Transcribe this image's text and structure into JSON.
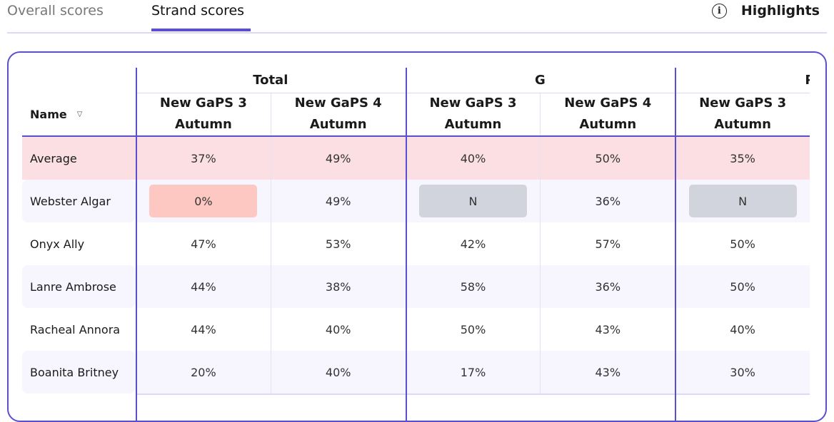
{
  "tabs": [
    {
      "label": "Overall scores",
      "active": false
    },
    {
      "label": "Strand scores",
      "active": true
    }
  ],
  "highlights": {
    "label": "Highlights",
    "icon": "info-icon"
  },
  "colors": {
    "accent": "#5b4fcf",
    "average_row": "#fbdfe3",
    "low_score": "#fec8c2",
    "no_data": "#d1d4dc",
    "alt_row": "#f7f6fe"
  },
  "table": {
    "name_header": "Name",
    "groups": [
      "Total",
      "G",
      "P"
    ],
    "columns": [
      "New GaPS 3 Autumn",
      "New GaPS 4 Autumn",
      "New GaPS 3 Autumn",
      "New GaPS 4 Autumn",
      "New GaPS 3 Autumn"
    ],
    "rows": [
      {
        "name": "Average",
        "values": [
          "37%",
          "49%",
          "40%",
          "50%",
          "35%"
        ],
        "type": "average"
      },
      {
        "name": "Webster Algar",
        "values": [
          "0%",
          "49%",
          "N",
          "36%",
          "N"
        ],
        "flags": [
          "low",
          "",
          "none",
          "",
          "none"
        ]
      },
      {
        "name": "Onyx Ally",
        "values": [
          "47%",
          "53%",
          "42%",
          "57%",
          "50%"
        ]
      },
      {
        "name": "Lanre Ambrose",
        "values": [
          "44%",
          "38%",
          "58%",
          "36%",
          "50%"
        ]
      },
      {
        "name": "Racheal Annora",
        "values": [
          "44%",
          "40%",
          "50%",
          "43%",
          "40%"
        ]
      },
      {
        "name": "Boanita Britney",
        "values": [
          "20%",
          "40%",
          "17%",
          "43%",
          "30%"
        ]
      }
    ]
  }
}
